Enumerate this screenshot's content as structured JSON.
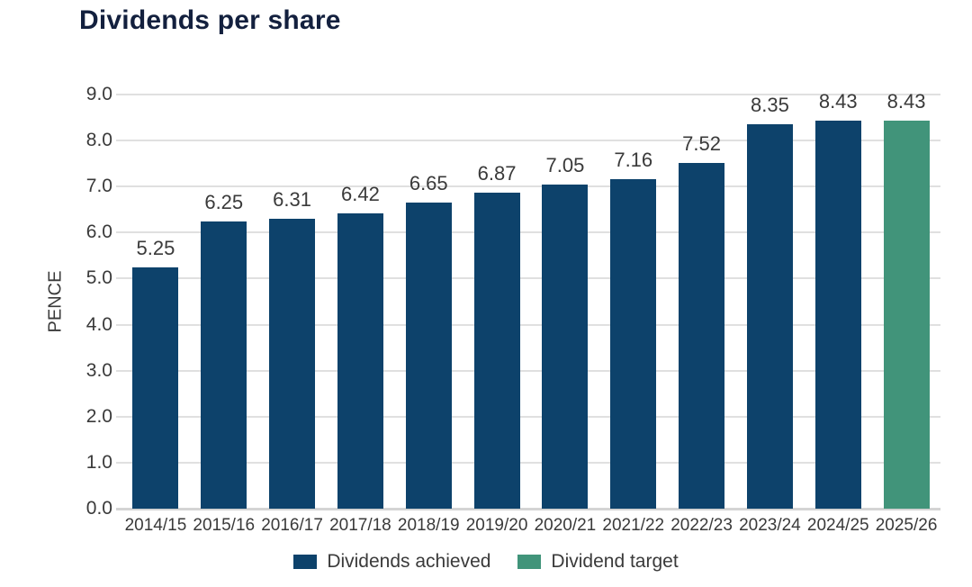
{
  "page": {
    "title": "Dividends per share"
  },
  "colors": {
    "achieved": "#0d426b",
    "target": "#41947a",
    "title_text": "#13203e",
    "axis_text": "#3a3a3a",
    "gridline": "#e0e0e0",
    "baseline": "#d4d4d4",
    "background": "#ffffff"
  },
  "chart_data": {
    "type": "bar",
    "title": "Dividends per share",
    "xlabel": "",
    "ylabel": "PENCE",
    "ylim": [
      0,
      9
    ],
    "ytick_step": 1.0,
    "grid": true,
    "legend_position": "bottom",
    "categories": [
      "2014/15",
      "2015/16",
      "2016/17",
      "2017/18",
      "2018/19",
      "2019/20",
      "2020/21",
      "2021/22",
      "2022/23",
      "2023/24",
      "2024/25",
      "2025/26"
    ],
    "series": [
      {
        "name": "Dividends achieved",
        "color": "#0d426b",
        "values": [
          5.25,
          6.25,
          6.31,
          6.42,
          6.65,
          6.87,
          7.05,
          7.16,
          7.52,
          8.35,
          8.43,
          null
        ]
      },
      {
        "name": "Dividend target",
        "color": "#41947a",
        "values": [
          null,
          null,
          null,
          null,
          null,
          null,
          null,
          null,
          null,
          null,
          null,
          8.43
        ]
      }
    ],
    "value_labels": [
      "5.25",
      "6.25",
      "6.31",
      "6.42",
      "6.65",
      "6.87",
      "7.05",
      "7.16",
      "7.52",
      "8.35",
      "8.43",
      "8.43"
    ]
  },
  "legend": {
    "items": [
      {
        "label": "Dividends achieved",
        "color": "#0d426b"
      },
      {
        "label": "Dividend target",
        "color": "#41947a"
      }
    ]
  }
}
